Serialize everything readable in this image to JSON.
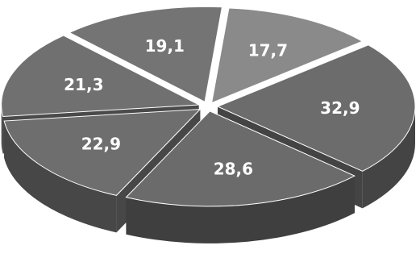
{
  "chart_data": {
    "type": "pie",
    "values": [
      17.7,
      32.9,
      28.6,
      22.9,
      21.3,
      19.1
    ],
    "labels": [
      "17,7",
      "32,9",
      "28,6",
      "22,9",
      "21,3",
      "19,1"
    ],
    "colors": [
      "#8a8a8a",
      "#6c6c6c",
      "#6b6b6b",
      "#6e6e6e",
      "#707070",
      "#747474"
    ],
    "side_colors": [
      "#5a5a5a",
      "#444444",
      "#3f3f3f",
      "#474747",
      "#4a4a4a",
      "#4f4f4f"
    ],
    "style": "3d-exploded",
    "legend": "none",
    "title": ""
  }
}
